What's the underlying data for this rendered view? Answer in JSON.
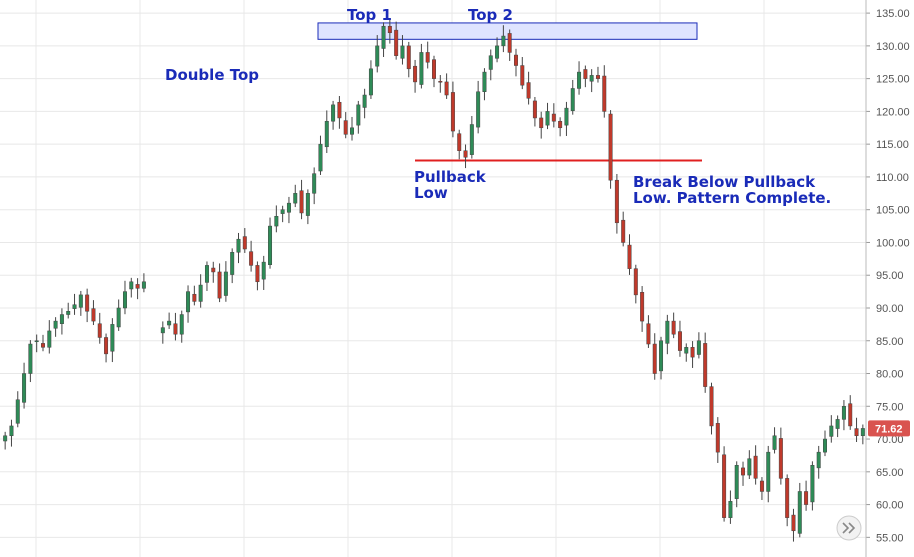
{
  "chart_data": {
    "type": "candlestick",
    "title": "",
    "ylim": [
      52,
      137
    ],
    "yticks": [
      "135.00",
      "130.00",
      "125.00",
      "120.00",
      "115.00",
      "110.00",
      "105.00",
      "100.00",
      "95.00",
      "90.00",
      "85.00",
      "80.00",
      "75.00",
      "70.00",
      "65.00",
      "60.00",
      "55.00"
    ],
    "last_price": "71.62",
    "grid": true,
    "colors": {
      "up": "#2e8b57",
      "down": "#c0392b",
      "wick": "#444444",
      "resistance_fill": "#dfe4ff",
      "resistance_border": "#1a2bb8",
      "support_line": "#e02020",
      "price_tag": "#d9534f",
      "annotation": "#1a2bb8"
    },
    "closes": [
      70.5,
      72.0,
      76.0,
      80.0,
      84.5,
      85.0,
      84.0,
      86.5,
      88.0,
      89.0,
      89.5,
      90.5,
      92.0,
      89.5,
      88.0,
      85.5,
      83.0,
      87.5,
      90.0,
      92.5,
      94.0,
      93.0,
      94.0,
      null,
      null,
      87.0,
      88.0,
      86.0,
      89.0,
      92.5,
      91.0,
      93.5,
      96.5,
      95.5,
      91.5,
      95.5,
      98.5,
      100.5,
      99.0,
      96.5,
      94.0,
      97.0,
      102.5,
      104.0,
      105.0,
      106.0,
      107.5,
      104.5,
      107.5,
      110.5,
      115.0,
      118.5,
      121.0,
      119.0,
      116.5,
      117.5,
      121.0,
      122.5,
      126.5,
      130.0,
      133.0,
      132.0,
      128.5,
      130.0,
      126.5,
      124.5,
      129.0,
      127.5,
      125.0,
      124.5,
      122.5,
      117.0,
      114.0,
      113.0,
      118.0,
      123.0,
      126.0,
      128.5,
      130.0,
      131.5,
      129.0,
      127.0,
      124.0,
      122.0,
      119.0,
      117.5,
      120.0,
      118.5,
      117.5,
      120.5,
      123.5,
      126.0,
      125.0,
      125.5,
      125.0,
      120.0,
      109.5,
      103.0,
      100.0,
      96.0,
      92.0,
      88.0,
      84.5,
      80.0,
      85.0,
      88.0,
      86.0,
      83.5,
      84.0,
      82.5,
      85.0,
      78.0,
      72.0,
      68.0,
      58.0,
      60.5,
      66.0,
      64.5,
      67.0,
      64.0,
      62.0,
      68.0,
      70.5,
      64.0,
      58.0,
      56.0,
      62.0,
      60.0,
      66.0,
      68.0,
      70.0,
      72.0,
      73.0,
      75.0,
      72.0,
      70.5,
      71.62
    ],
    "resistance_zone": [
      131.0,
      133.5
    ],
    "pullback_low": 112.5,
    "annotations": {
      "double_top": "Double Top",
      "top1": "Top 1",
      "top2": "Top 2",
      "pullback_line1": "Pullback",
      "pullback_line2": "Low",
      "break_line1": "Break Below Pullback",
      "break_line2": "Low. Pattern Complete."
    }
  },
  "scroll_icon": "double-chevron-right-icon"
}
